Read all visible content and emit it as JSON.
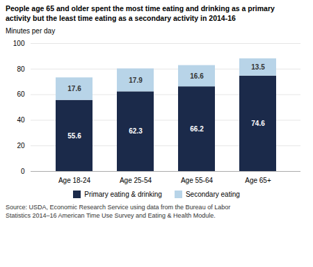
{
  "chart_data": {
    "type": "bar",
    "stacked": true,
    "title": "People age 65 and older spent the most time eating and drinking as a primary\nactivity but the least time eating as a secondary activity in 2014-16",
    "ylabel": "Minutes per day",
    "categories": [
      "Age 18-24",
      "Age 25-54",
      "Age 55-64",
      "Age 65+"
    ],
    "series": [
      {
        "name": "Primary eating & drinking",
        "color": "#1b2a4a",
        "values": [
          55.6,
          62.3,
          66.2,
          74.6
        ]
      },
      {
        "name": "Secondary eating",
        "color": "#b8d4e8",
        "values": [
          17.6,
          17.9,
          16.6,
          13.5
        ]
      }
    ],
    "ylim": [
      0,
      100
    ],
    "yticks": [
      0,
      20,
      40,
      60,
      80,
      100
    ],
    "grid": true,
    "legend": "bottom",
    "data_labels": true,
    "caption": "Source: USDA, Economic Research Service using data from the Bureau of Labor\nStatistics 2014–16 American Time Use Survey and Eating & Health Module."
  }
}
